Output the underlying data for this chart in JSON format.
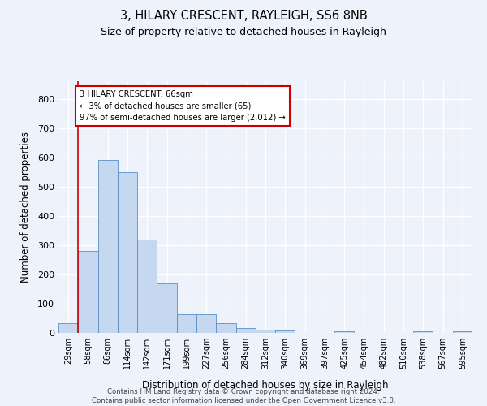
{
  "title": "3, HILARY CRESCENT, RAYLEIGH, SS6 8NB",
  "subtitle": "Size of property relative to detached houses in Rayleigh",
  "xlabel": "Distribution of detached houses by size in Rayleigh",
  "ylabel": "Number of detached properties",
  "bin_labels": [
    "29sqm",
    "58sqm",
    "86sqm",
    "114sqm",
    "142sqm",
    "171sqm",
    "199sqm",
    "227sqm",
    "256sqm",
    "284sqm",
    "312sqm",
    "340sqm",
    "369sqm",
    "397sqm",
    "425sqm",
    "454sqm",
    "482sqm",
    "510sqm",
    "538sqm",
    "567sqm",
    "595sqm"
  ],
  "bar_heights": [
    33,
    280,
    590,
    550,
    320,
    168,
    65,
    65,
    32,
    18,
    10,
    8,
    0,
    0,
    6,
    0,
    0,
    0,
    6,
    0,
    6
  ],
  "bar_color": "#c5d8f0",
  "bar_edge_color": "#5b8dc8",
  "property_line_x": 0.5,
  "property_line_color": "#cc0000",
  "annotation_text": "3 HILARY CRESCENT: 66sqm\n← 3% of detached houses are smaller (65)\n97% of semi-detached houses are larger (2,012) →",
  "annotation_box_color": "#ffffff",
  "annotation_box_edge_color": "#cc0000",
  "ylim": [
    0,
    860
  ],
  "yticks": [
    0,
    100,
    200,
    300,
    400,
    500,
    600,
    700,
    800
  ],
  "footer": "Contains HM Land Registry data © Crown copyright and database right 2024.\nContains public sector information licensed under the Open Government Licence v3.0.",
  "bg_color": "#eef2fb",
  "grid_color": "#ffffff"
}
